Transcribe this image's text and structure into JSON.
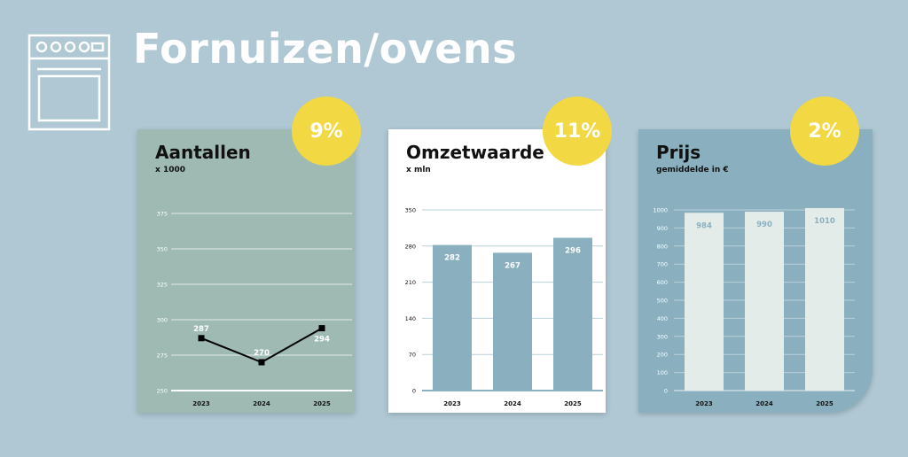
{
  "page": {
    "title": "Fornuizen/ovens",
    "icon": "oven-icon"
  },
  "colors": {
    "background": "#afc8d4",
    "badge": "#f2d842",
    "card_green": "#9fbab3",
    "card_white": "#ffffff",
    "card_blue": "#8ab0c0",
    "bar_blue": "#8ab0c0",
    "bar_light": "#e4ecea",
    "line": "#000000"
  },
  "chart_data": [
    {
      "id": "aantallen",
      "type": "line",
      "title": "Aantallen",
      "subtitle": "x 1000",
      "badge": "9%",
      "categories": [
        "2023",
        "2024",
        "2025"
      ],
      "values": [
        287,
        270,
        294
      ],
      "value_labels": [
        "287",
        "270",
        "294"
      ],
      "ylim": [
        250,
        375
      ],
      "yticks": [
        250,
        275,
        300,
        325,
        350,
        375
      ],
      "ytick_labels": [
        "250",
        "275",
        "300",
        "325",
        "350",
        "375"
      ],
      "grid": true
    },
    {
      "id": "omzet",
      "type": "bar",
      "title": "Omzetwaarde",
      "subtitle": "x mln",
      "badge": "11%",
      "categories": [
        "2023",
        "2024",
        "2025"
      ],
      "values": [
        282,
        267,
        296
      ],
      "value_labels": [
        "282",
        "267",
        "296"
      ],
      "ylim": [
        0,
        350
      ],
      "yticks": [
        0,
        70,
        140,
        210,
        280,
        350
      ],
      "ytick_labels": [
        "0",
        "70",
        "140",
        "210",
        "280",
        "350"
      ],
      "grid": true
    },
    {
      "id": "prijs",
      "type": "bar",
      "title": "Prijs",
      "subtitle": "gemiddelde in €",
      "badge": "2%",
      "categories": [
        "2023",
        "2024",
        "2025"
      ],
      "values": [
        984,
        990,
        1010
      ],
      "value_labels": [
        "984",
        "990",
        "1010"
      ],
      "ylim": [
        0,
        1000
      ],
      "yticks": [
        0,
        100,
        200,
        300,
        400,
        500,
        600,
        700,
        800,
        900,
        1000
      ],
      "ytick_labels": [
        "0",
        "100",
        "200",
        "300",
        "400",
        "500",
        "600",
        "700",
        "800",
        "900",
        "1000"
      ],
      "grid": true
    }
  ]
}
